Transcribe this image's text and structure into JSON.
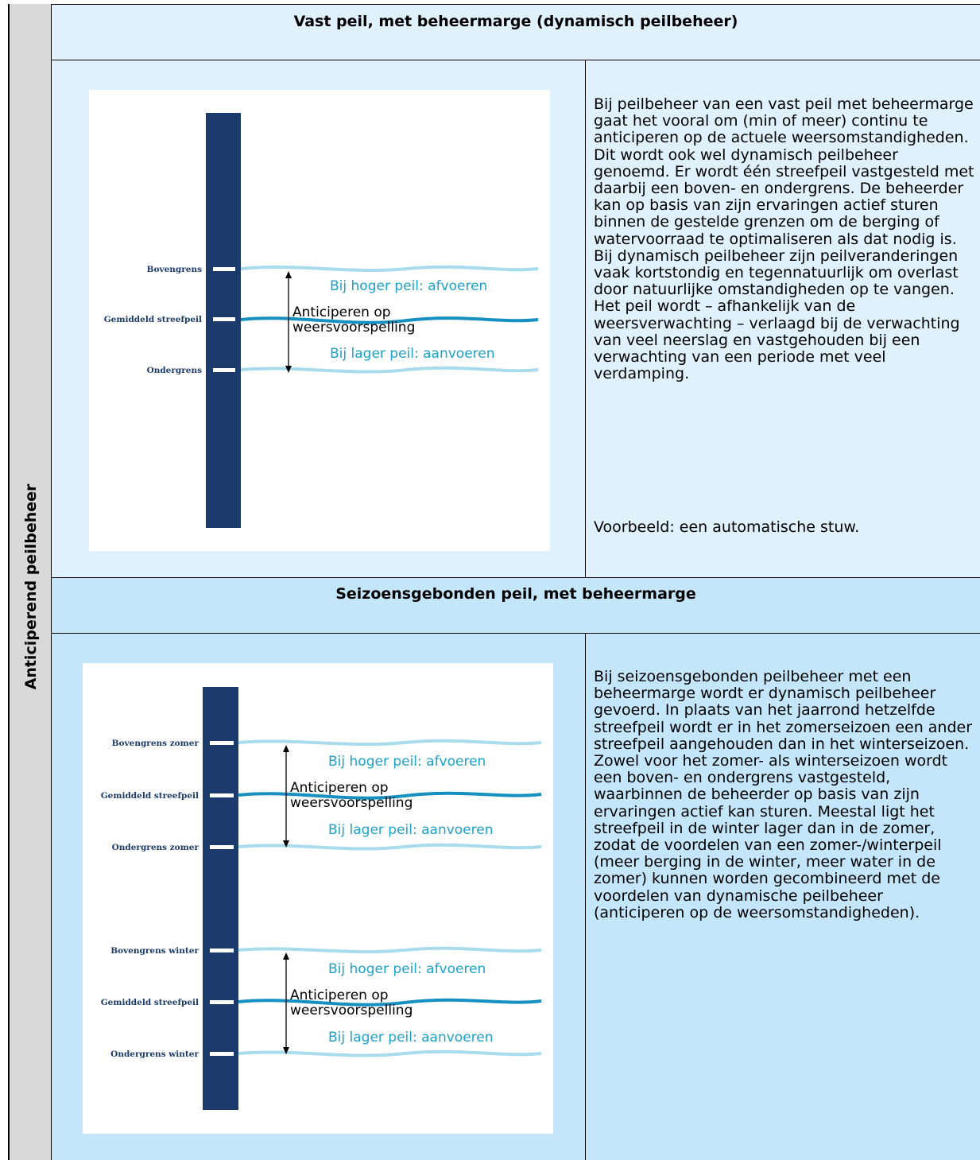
{
  "side_label": "Anticiperend peilbeheer",
  "section1": {
    "title": "Vast peil, met beheermarge (dynamisch peilbeheer)",
    "figure": {
      "levels": [
        "Bovengrens",
        "Gemiddeld streefpeil",
        "Ondergrens"
      ],
      "upper_action": "Bij hoger peil: afvoeren",
      "center_line1": "Anticiperen op",
      "center_line2": "weersvoorspelling",
      "lower_action": "Bij lager peil: aanvoeren"
    },
    "paragraph": "Bij peilbeheer van een vast peil met beheermarge gaat het vooral om (min of meer) continu te anticiperen op de actuele weersomstandigheden. Dit wordt ook wel dynamisch peilbeheer genoemd. Er wordt één streefpeil vastgesteld met daarbij een boven- en ondergrens. De beheerder kan op basis van zijn ervaringen actief sturen binnen de gestelde grenzen om de berging of watervoorraad te optimaliseren als dat nodig is. Bij dynamisch peilbeheer zijn peilveranderingen vaak kortstondig en tegennatuurlijk om overlast door natuurlijke omstandigheden op te vangen. Het peil wordt – afhankelijk van de weersverwachting – verlaagd bij de verwachting van veel neerslag en vastgehouden bij een verwachting van een periode met veel verdamping.",
    "example": "Voorbeeld: een automatische stuw."
  },
  "section2": {
    "title": "Seizoensgebonden peil, met beheermarge",
    "figure": {
      "summer_levels": [
        "Bovengrens zomer",
        "Gemiddeld streefpeil",
        "Ondergrens zomer"
      ],
      "winter_levels": [
        "Bovengrens winter",
        "Gemiddeld streefpeil",
        "Ondergrens winter"
      ],
      "upper_action": "Bij hoger peil: afvoeren",
      "center_line1": "Anticiperen op",
      "center_line2": "weersvoorspelling",
      "lower_action": "Bij lager peil: aanvoeren"
    },
    "paragraph": "Bij seizoensgebonden peilbeheer met een beheermarge wordt er dynamisch peilbeheer gevoerd. In plaats van het jaarrond hetzelfde streefpeil wordt er in het zomerseizoen een ander streefpeil aangehouden dan in het winterseizoen. Zowel voor het zomer- als winterseizoen wordt een boven- en ondergrens vastgesteld, waarbinnen de beheerder op basis van zijn ervaringen actief kan sturen. Meestal ligt het streefpeil in de winter lager dan in de zomer, zodat de voordelen van een zomer-/winterpeil (meer berging in de winter, meer water in de zomer) kunnen worden gecombineerd met de voordelen van dynamische peilbeheer (anticiperen op de weersomstandigheden)."
  },
  "colors": {
    "gauge": "#1a3b6b",
    "light_wave": "#a8dcec",
    "dark_wave": "#1590c0",
    "action_text": "#1ea1c9",
    "header1_bg": "#dff1fc",
    "section2_bg": "#c3e6fa",
    "side_bg": "#d9d9d9"
  }
}
